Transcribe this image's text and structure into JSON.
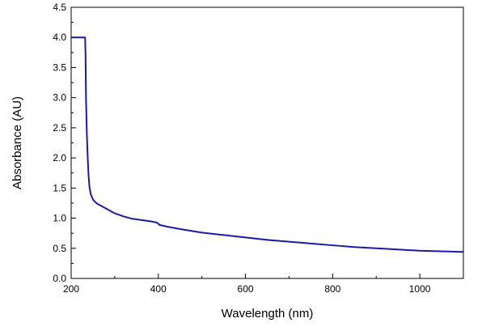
{
  "chart_data": {
    "type": "line",
    "title": "",
    "xlabel": "Wavelength (nm)",
    "ylabel": "Absorbance (AU)",
    "xlim": [
      200,
      1100
    ],
    "ylim": [
      0.0,
      4.5
    ],
    "x_ticks": [
      200,
      400,
      600,
      800,
      1000
    ],
    "x_tick_labels": [
      "200",
      "400",
      "600",
      "800",
      "1000"
    ],
    "y_ticks": [
      0.0,
      0.5,
      1.0,
      1.5,
      2.0,
      2.5,
      3.0,
      3.5,
      4.0,
      4.5
    ],
    "y_tick_labels": [
      "0.0",
      "0.5",
      "1.0",
      "1.5",
      "2.0",
      "2.5",
      "3.0",
      "3.5",
      "4.0",
      "4.5"
    ],
    "grid": false,
    "legend": "none",
    "series": [
      {
        "color": "#1a1aa8",
        "x": [
          200,
          232,
          233,
          234,
          236,
          238,
          240,
          242,
          245,
          250,
          255,
          260,
          270,
          280,
          300,
          320,
          340,
          360,
          380,
          395,
          400,
          402,
          420,
          450,
          500,
          550,
          600,
          650,
          700,
          750,
          800,
          850,
          900,
          950,
          1000,
          1050,
          1100
        ],
        "y": [
          4.0,
          4.0,
          3.7,
          3.0,
          2.4,
          2.0,
          1.7,
          1.52,
          1.4,
          1.31,
          1.27,
          1.24,
          1.2,
          1.16,
          1.08,
          1.03,
          0.99,
          0.97,
          0.95,
          0.93,
          0.91,
          0.89,
          0.86,
          0.82,
          0.76,
          0.72,
          0.68,
          0.64,
          0.61,
          0.58,
          0.55,
          0.52,
          0.5,
          0.48,
          0.46,
          0.45,
          0.44
        ]
      }
    ]
  }
}
